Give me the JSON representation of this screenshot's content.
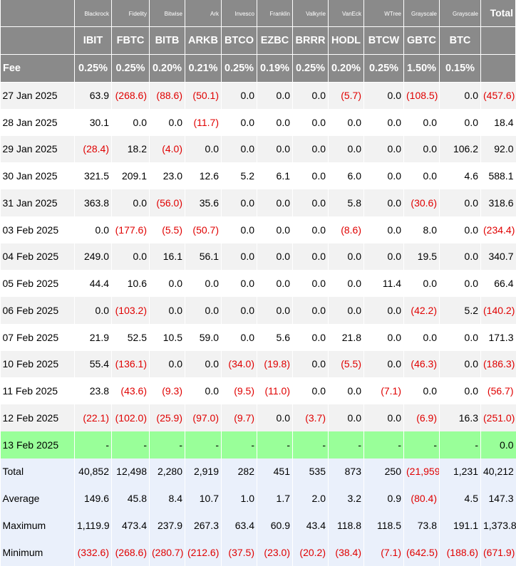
{
  "issuers": [
    "Blackrock",
    "Fidelity",
    "Bitwise",
    "Ark",
    "Invesco",
    "Franklin",
    "Valkyrie",
    "VanEck",
    "WTree",
    "Grayscale",
    "Grayscale"
  ],
  "total_label": "Total",
  "tickers": [
    "IBIT",
    "FBTC",
    "BITB",
    "ARKB",
    "BTCO",
    "EZBC",
    "BRRR",
    "HODL",
    "BTCW",
    "GBTC",
    "BTC"
  ],
  "fee_label": "Fee",
  "fees": [
    "0.25%",
    "0.25%",
    "0.20%",
    "0.21%",
    "0.25%",
    "0.19%",
    "0.25%",
    "0.20%",
    "0.25%",
    "1.50%",
    "0.15%"
  ],
  "rows": [
    {
      "date": "27 Jan 2025",
      "values": [
        "63.9",
        "(268.6)",
        "(88.6)",
        "(50.1)",
        "0.0",
        "0.0",
        "0.0",
        "(5.7)",
        "0.0",
        "(108.5)",
        "0.0"
      ],
      "total": "(457.6)"
    },
    {
      "date": "28 Jan 2025",
      "values": [
        "30.1",
        "0.0",
        "0.0",
        "(11.7)",
        "0.0",
        "0.0",
        "0.0",
        "0.0",
        "0.0",
        "0.0",
        "0.0"
      ],
      "total": "18.4"
    },
    {
      "date": "29 Jan 2025",
      "values": [
        "(28.4)",
        "18.2",
        "(4.0)",
        "0.0",
        "0.0",
        "0.0",
        "0.0",
        "0.0",
        "0.0",
        "0.0",
        "106.2"
      ],
      "total": "92.0"
    },
    {
      "date": "30 Jan 2025",
      "values": [
        "321.5",
        "209.1",
        "23.0",
        "12.6",
        "5.2",
        "6.1",
        "0.0",
        "6.0",
        "0.0",
        "0.0",
        "4.6"
      ],
      "total": "588.1"
    },
    {
      "date": "31 Jan 2025",
      "values": [
        "363.8",
        "0.0",
        "(56.0)",
        "35.6",
        "0.0",
        "0.0",
        "0.0",
        "5.8",
        "0.0",
        "(30.6)",
        "0.0"
      ],
      "total": "318.6"
    },
    {
      "date": "03 Feb 2025",
      "values": [
        "0.0",
        "(177.6)",
        "(5.5)",
        "(50.7)",
        "0.0",
        "0.0",
        "0.0",
        "(8.6)",
        "0.0",
        "8.0",
        "0.0"
      ],
      "total": "(234.4)"
    },
    {
      "date": "04 Feb 2025",
      "values": [
        "249.0",
        "0.0",
        "16.1",
        "56.1",
        "0.0",
        "0.0",
        "0.0",
        "0.0",
        "0.0",
        "19.5",
        "0.0"
      ],
      "total": "340.7"
    },
    {
      "date": "05 Feb 2025",
      "values": [
        "44.4",
        "10.6",
        "0.0",
        "0.0",
        "0.0",
        "0.0",
        "0.0",
        "0.0",
        "11.4",
        "0.0",
        "0.0"
      ],
      "total": "66.4"
    },
    {
      "date": "06 Feb 2025",
      "values": [
        "0.0",
        "(103.2)",
        "0.0",
        "0.0",
        "0.0",
        "0.0",
        "0.0",
        "0.0",
        "0.0",
        "(42.2)",
        "5.2"
      ],
      "total": "(140.2)"
    },
    {
      "date": "07 Feb 2025",
      "values": [
        "21.9",
        "52.5",
        "10.5",
        "59.0",
        "0.0",
        "5.6",
        "0.0",
        "21.8",
        "0.0",
        "0.0",
        "0.0"
      ],
      "total": "171.3"
    },
    {
      "date": "10 Feb 2025",
      "values": [
        "55.4",
        "(136.1)",
        "0.0",
        "0.0",
        "(34.0)",
        "(19.8)",
        "0.0",
        "(5.5)",
        "0.0",
        "(46.3)",
        "0.0"
      ],
      "total": "(186.3)"
    },
    {
      "date": "11 Feb 2025",
      "values": [
        "23.8",
        "(43.6)",
        "(9.3)",
        "0.0",
        "(9.5)",
        "(11.0)",
        "0.0",
        "0.0",
        "(7.1)",
        "0.0",
        "0.0"
      ],
      "total": "(56.7)"
    },
    {
      "date": "12 Feb 2025",
      "values": [
        "(22.1)",
        "(102.0)",
        "(25.9)",
        "(97.0)",
        "(9.7)",
        "0.0",
        "(3.7)",
        "0.0",
        "0.0",
        "(6.9)",
        "16.3"
      ],
      "total": "(251.0)"
    },
    {
      "date": "13 Feb 2025",
      "values": [
        "-",
        "-",
        "-",
        "-",
        "-",
        "-",
        "-",
        "-",
        "-",
        "-",
        "-"
      ],
      "total": "0.0",
      "today": true
    }
  ],
  "stats": [
    {
      "label": "Total",
      "values": [
        "40,852",
        "12,498",
        "2,280",
        "2,919",
        "282",
        "451",
        "535",
        "873",
        "250",
        "(21,959)",
        "1,231"
      ],
      "total": "40,212"
    },
    {
      "label": "Average",
      "values": [
        "149.6",
        "45.8",
        "8.4",
        "10.7",
        "1.0",
        "1.7",
        "2.0",
        "3.2",
        "0.9",
        "(80.4)",
        "4.5"
      ],
      "total": "147.3"
    },
    {
      "label": "Maximum",
      "values": [
        "1,119.9",
        "473.4",
        "237.9",
        "267.3",
        "63.4",
        "60.9",
        "43.4",
        "118.8",
        "118.5",
        "73.8",
        "191.1"
      ],
      "total": "1,373.8"
    },
    {
      "label": "Minimum",
      "values": [
        "(332.6)",
        "(268.6)",
        "(280.7)",
        "(212.6)",
        "(37.5)",
        "(23.0)",
        "(20.2)",
        "(38.4)",
        "(7.1)",
        "(642.5)",
        "(188.6)"
      ],
      "total": "(671.9)"
    }
  ]
}
